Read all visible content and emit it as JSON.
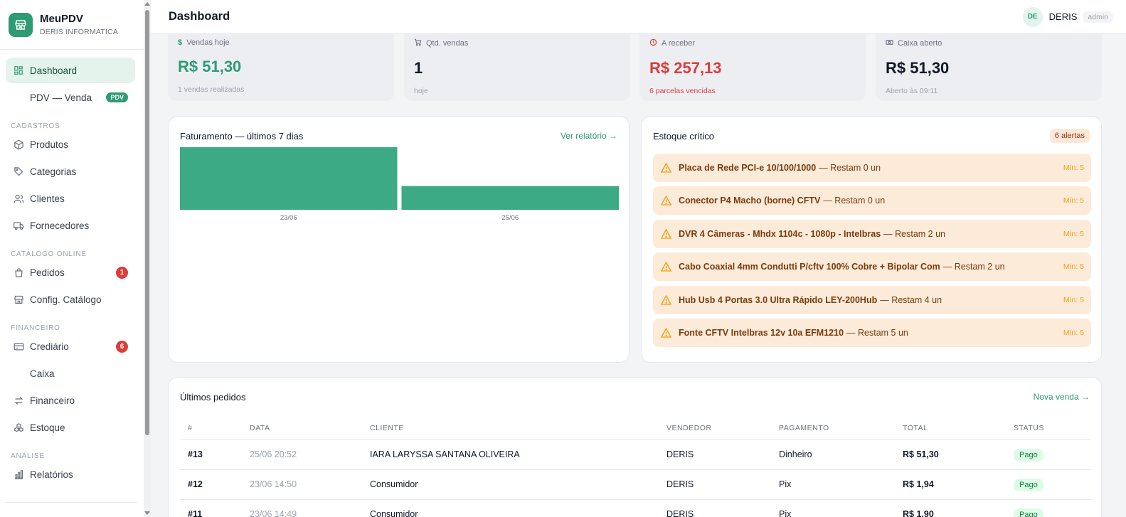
{
  "brand": {
    "name": "MeuPDV",
    "subtitle": "DERIS INFORMATICA"
  },
  "sidebar": {
    "items": [
      {
        "label": "Dashboard",
        "icon": "grid-icon",
        "active": true
      },
      {
        "label": "PDV — Venda",
        "badge": "PDV"
      },
      {
        "section": "CADASTROS"
      },
      {
        "label": "Produtos",
        "icon": "box-icon"
      },
      {
        "label": "Categorias",
        "icon": "tag-icon"
      },
      {
        "label": "Clientes",
        "icon": "users-icon"
      },
      {
        "label": "Fornecedores",
        "icon": "truck-icon"
      },
      {
        "section": "CATÁLOGO ONLINE"
      },
      {
        "label": "Pedidos",
        "icon": "bag-icon",
        "count": "1"
      },
      {
        "label": "Config. Catálogo",
        "icon": "store-icon"
      },
      {
        "section": "FINANCEIRO"
      },
      {
        "label": "Crediário",
        "icon": "card-icon",
        "count": "6"
      },
      {
        "label": "Caixa"
      },
      {
        "label": "Financeiro",
        "icon": "arrows-icon"
      },
      {
        "label": "Estoque",
        "icon": "boxes-icon"
      },
      {
        "section": "ANÁLISE"
      },
      {
        "label": "Relatórios",
        "icon": "bar-chart-icon"
      }
    ]
  },
  "header": {
    "title": "Dashboard",
    "user_initials": "DE",
    "user_name": "DERIS",
    "role": "admin"
  },
  "stats": [
    {
      "icon": "dollar-icon",
      "label": "Vendas hoje",
      "value": "R$ 51,30",
      "sub": "1 vendas realizadas",
      "color": "#2e9b74"
    },
    {
      "icon": "cart-icon",
      "label": "Qtd. vendas",
      "value": "1",
      "sub": "hoje",
      "color": "#111827"
    },
    {
      "icon": "clock-icon",
      "label": "A receber",
      "value": "R$ 257,13",
      "sub": "6 parcelas vencidas",
      "color": "#dc3c3c"
    },
    {
      "icon": "cash-icon",
      "label": "Caixa aberto",
      "value": "R$ 51,30",
      "sub": "Aberto às 09:11",
      "color": "#111827"
    }
  ],
  "revenue": {
    "title": "Faturamento — últimos 7 dias",
    "link": "Ver relatório →"
  },
  "chart_data": {
    "type": "bar",
    "categories": [
      "23/06",
      "25/06"
    ],
    "values": [
      1.0,
      0.38
    ],
    "color": "#3daa86"
  },
  "stock": {
    "title": "Estoque crítico",
    "badge": "6 alertas",
    "alerts": [
      {
        "name": "Placa de Rede PCI-e 10/100/1000",
        "rest": "— Restam 0 un",
        "min": "Mín: 5"
      },
      {
        "name": "Conector P4 Macho (borne) CFTV",
        "rest": "— Restam 0 un",
        "min": "Mín: 5"
      },
      {
        "name": "DVR 4 Câmeras - Mhdx 1104c - 1080p - Intelbras",
        "rest": "— Restam 2 un",
        "min": "Mín: 5"
      },
      {
        "name": "Cabo Coaxial 4mm Condutti P/cftv 100% Cobre + Bipolar Com",
        "rest": "— Restam 2 un",
        "min": "Mín: 5"
      },
      {
        "name": "Hub Usb 4 Portas 3.0 Ultra Rápido LEY-200Hub",
        "rest": "— Restam 4 un",
        "min": "Mín: 5"
      },
      {
        "name": "Fonte CFTV Intelbras 12v 10a EFM1210",
        "rest": "— Restam 5 un",
        "min": "Mín: 5"
      }
    ]
  },
  "orders": {
    "title": "Últimos pedidos",
    "link": "Nova venda →",
    "columns": [
      "#",
      "DATA",
      "CLIENTE",
      "VENDEDOR",
      "PAGAMENTO",
      "TOTAL",
      "STATUS"
    ],
    "rows": [
      {
        "id": "#13",
        "date": "25/06 20:52",
        "client": "IARA LARYSSA SANTANA OLIVEIRA",
        "seller": "DERIS",
        "payment": "Dinheiro",
        "total": "R$ 51,30",
        "status": "Pago"
      },
      {
        "id": "#12",
        "date": "23/06 14:50",
        "client": "Consumidor",
        "seller": "DERIS",
        "payment": "Pix",
        "total": "R$ 1,94",
        "status": "Pago"
      },
      {
        "id": "#11",
        "date": "23/06 14:49",
        "client": "Consumidor",
        "seller": "DERIS",
        "payment": "Pix",
        "total": "R$ 1,90",
        "status": "Pago"
      }
    ]
  }
}
